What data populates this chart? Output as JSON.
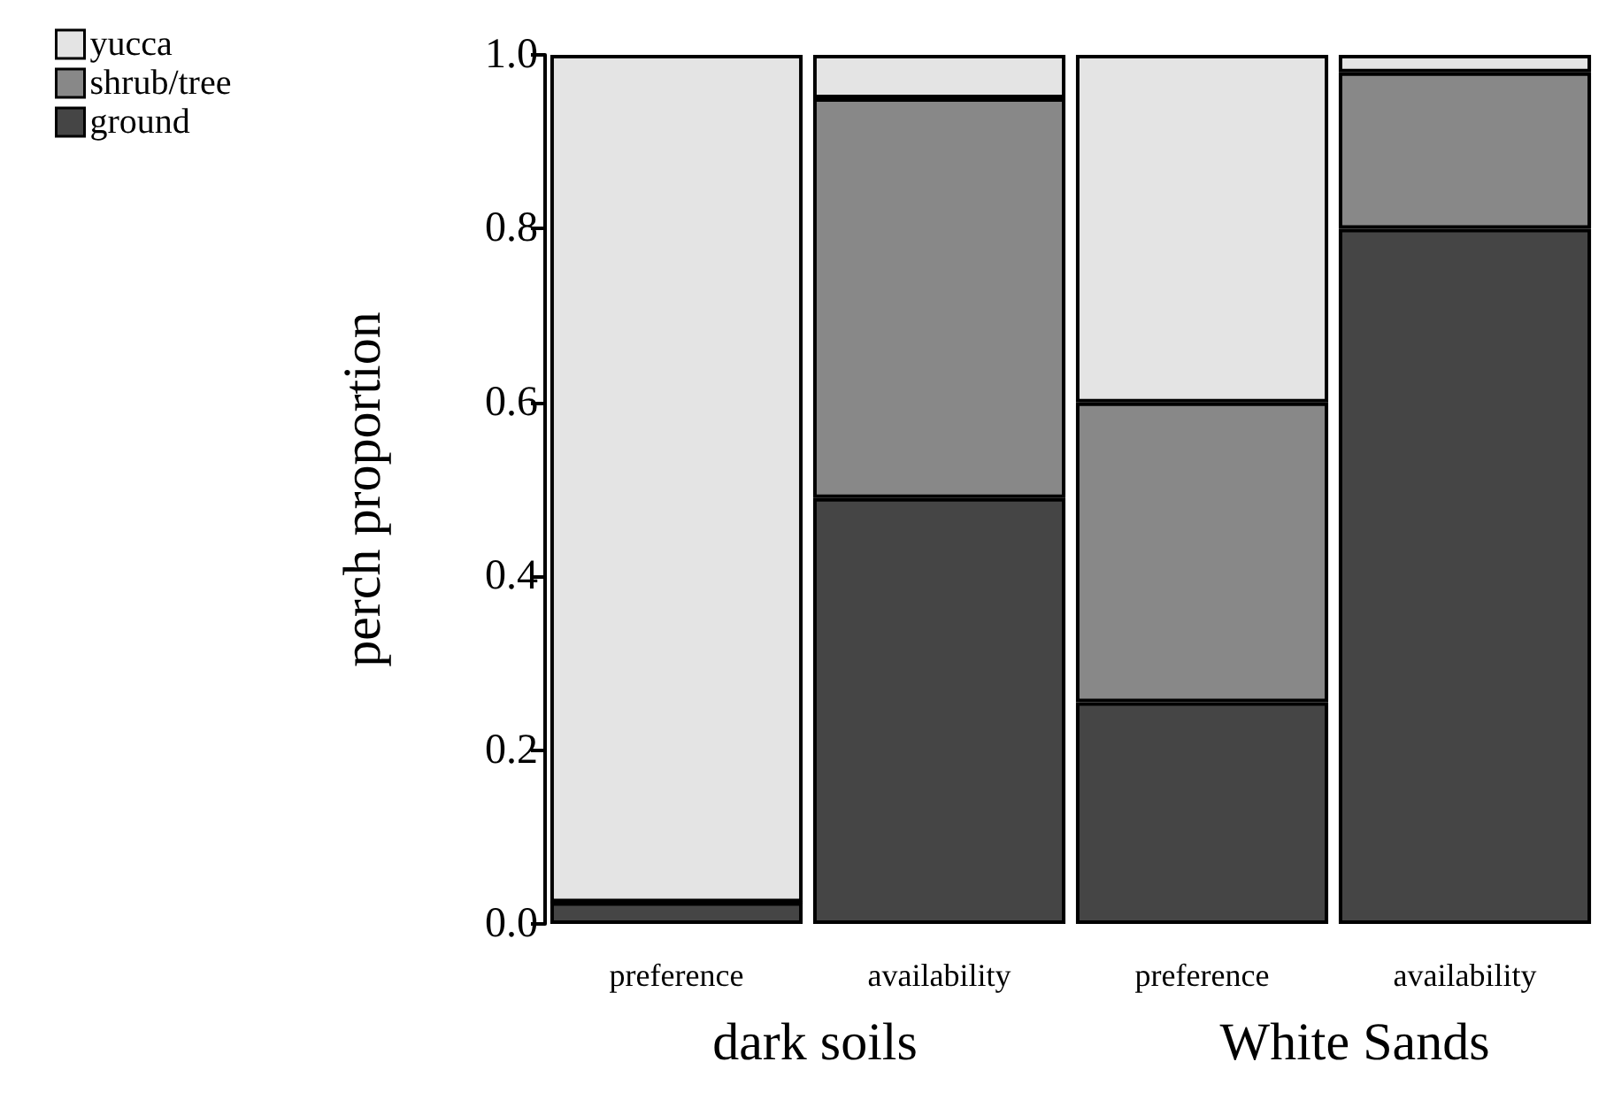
{
  "chart_data": {
    "type": "bar",
    "stacked": true,
    "ylabel": "perch proportion",
    "categories": [
      "preference",
      "availability",
      "preference",
      "availability"
    ],
    "series": [
      {
        "name": "ground",
        "color": "#454545",
        "values": [
          0.025,
          0.49,
          0.255,
          0.8
        ]
      },
      {
        "name": "shrub/tree",
        "color": "#888888",
        "values": [
          0,
          0.46,
          0.345,
          0.18
        ]
      },
      {
        "name": "yucca",
        "color": "#e4e4e4",
        "values": [
          0.975,
          0.05,
          0.4,
          0.02
        ]
      }
    ],
    "ylim": [
      0,
      1
    ],
    "yticks": [
      {
        "value": 0,
        "label": "0.0"
      },
      {
        "value": 0.2,
        "label": "0.2"
      },
      {
        "value": 0.4,
        "label": "0.4"
      },
      {
        "value": 0.6,
        "label": "0.6"
      },
      {
        "value": 0.8,
        "label": "0.8"
      },
      {
        "value": 1,
        "label": "1.0"
      }
    ],
    "grid": false,
    "legend": "top left",
    "annotations": [
      "dark soils",
      "White Sands"
    ]
  }
}
